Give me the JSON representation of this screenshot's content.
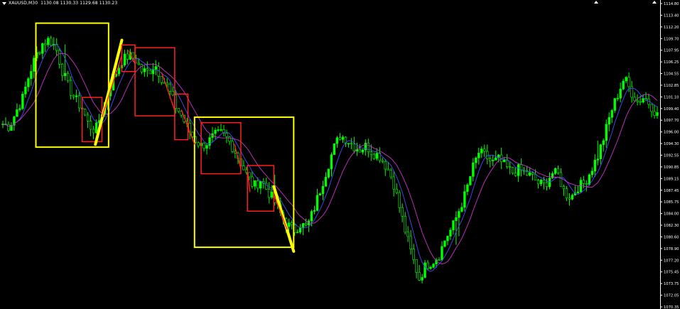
{
  "header": {
    "symbol_tf": "XAUUSD,M30",
    "ohlc": "1130.08 1130.33 1129.68 1130.23"
  },
  "colors": {
    "background": "#000000",
    "candle": "#00ff00",
    "ma_fast": "#4a4aff",
    "ma_slow": "#cc33cc",
    "annotation_yellow": "#ffff00",
    "annotation_red": "#ff2020",
    "axis_text": "#ffffff",
    "axis_line": "#ffffff"
  },
  "chart_data": {
    "type": "candlestick",
    "title": "",
    "xlabel": "",
    "ylabel": "",
    "ylim": [
      1070.04,
      1115.4
    ],
    "y_ticks": [
      "1114.80",
      "1113.40",
      "1112.20",
      "1109.70",
      "1107.95",
      "1106.25",
      "1104.55",
      "1102.85",
      "1101.10",
      "1099.40",
      "1097.70",
      "1096.00",
      "1094.30",
      "1092.55",
      "1090.85",
      "1089.15",
      "1087.45",
      "1085.75",
      "1084.00",
      "1082.30",
      "1080.60",
      "1078.90",
      "1077.20",
      "1075.45",
      "1073.75",
      "1072.05",
      "1070.35"
    ],
    "price_series": [
      1097.2,
      1096.8,
      1099.0,
      1101.0,
      1104.5,
      1107.2,
      1109.0,
      1109.6,
      1108.5,
      1105.0,
      1102.5,
      1100.8,
      1099.5,
      1097.0,
      1096.2,
      1099.0,
      1102.0,
      1104.5,
      1106.5,
      1107.2,
      1106.8,
      1105.0,
      1104.8,
      1106.0,
      1104.0,
      1102.5,
      1100.0,
      1098.5,
      1096.5,
      1095.0,
      1094.0,
      1094.5,
      1095.5,
      1095.8,
      1095.0,
      1093.5,
      1091.5,
      1089.5,
      1088.0,
      1089.0,
      1087.5,
      1086.0,
      1084.0,
      1082.5,
      1081.5,
      1082.5,
      1082.0,
      1084.5,
      1087.5,
      1090.5,
      1093.5,
      1095.5,
      1095.0,
      1094.0,
      1093.5,
      1094.0,
      1093.0,
      1092.5,
      1091.0,
      1089.0,
      1085.0,
      1081.0,
      1077.5,
      1074.5,
      1076.5,
      1077.0,
      1078.0,
      1080.5,
      1082.0,
      1084.5,
      1087.0,
      1090.5,
      1093.0,
      1092.5,
      1091.5,
      1092.0,
      1091.0,
      1090.0,
      1090.5,
      1090.0,
      1089.5,
      1088.5,
      1088.2,
      1090.0,
      1089.8,
      1087.0,
      1086.5,
      1088.0,
      1088.5,
      1090.5,
      1092.5,
      1095.5,
      1099.0,
      1101.5,
      1104.0,
      1102.0,
      1100.5,
      1101.2,
      1100.0,
      1098.5
    ],
    "annotations": [
      {
        "kind": "rect",
        "color": "yellow",
        "x0": 5,
        "x1": 16
      },
      {
        "kind": "rect",
        "color": "red",
        "x0": 12,
        "x1": 15
      },
      {
        "kind": "line",
        "color": "yellow",
        "x0": 14,
        "x1": 18
      },
      {
        "kind": "rect",
        "color": "red",
        "x0": 18,
        "x1": 20
      },
      {
        "kind": "rect",
        "color": "red",
        "x0": 20,
        "x1": 26
      },
      {
        "kind": "rect",
        "color": "red",
        "x0": 26,
        "x1": 28
      },
      {
        "kind": "rect",
        "color": "yellow",
        "x0": 29,
        "x1": 44
      },
      {
        "kind": "rect",
        "color": "red",
        "x0": 30,
        "x1": 36
      },
      {
        "kind": "rect",
        "color": "red",
        "x0": 37,
        "x1": 41
      },
      {
        "kind": "line",
        "color": "yellow",
        "x0": 41,
        "x1": 44
      }
    ]
  }
}
